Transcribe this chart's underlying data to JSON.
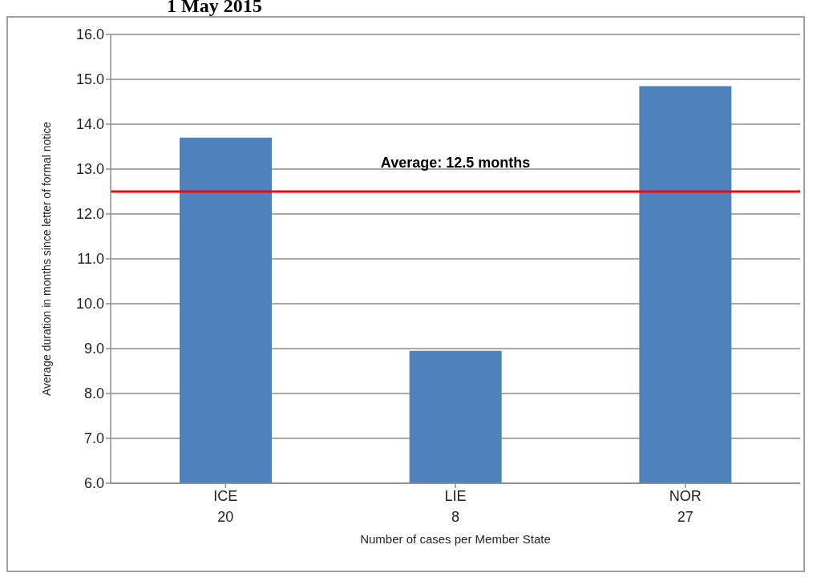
{
  "chart_data": {
    "type": "bar",
    "title": "1 May 2015",
    "xlabel": "Number of cases per Member State",
    "ylabel": "Average duration in months since letter of formal notice",
    "categories": [
      "ICE\n20",
      "LIE\n8",
      "NOR\n27"
    ],
    "series": [
      {
        "color": "#4f81bd",
        "values": [
          13.7,
          8.95,
          14.85
        ]
      }
    ],
    "ylim": [
      6,
      16
    ],
    "yticks": [
      {
        "value": 6,
        "label": "6.0"
      },
      {
        "value": 7,
        "label": "7.0"
      },
      {
        "value": 8,
        "label": "8.0"
      },
      {
        "value": 9,
        "label": "9.0"
      },
      {
        "value": 10,
        "label": "10.0"
      },
      {
        "value": 11,
        "label": "11.0"
      },
      {
        "value": 12,
        "label": "12.0"
      },
      {
        "value": 13,
        "label": "13.0"
      },
      {
        "value": 14,
        "label": "14.0"
      },
      {
        "value": 15,
        "label": "15.0"
      },
      {
        "value": 16,
        "label": "16.0"
      }
    ],
    "grid": "y",
    "legend": false,
    "ref_lines": [
      {
        "axis": "y",
        "value": 12.5,
        "label": "Average: 12.5 months",
        "color": "#ff0000"
      }
    ]
  }
}
